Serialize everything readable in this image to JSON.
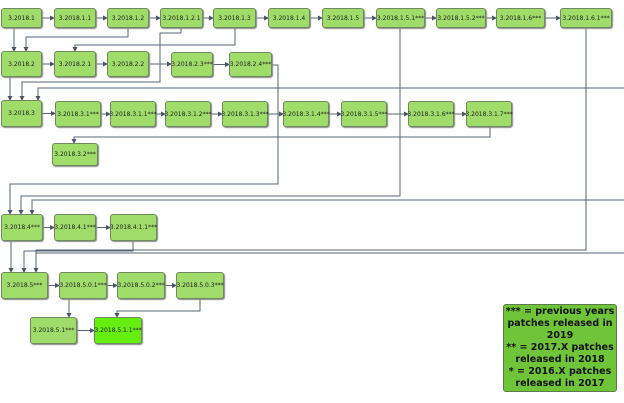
{
  "nodes": [
    "3.2018.1",
    "3.2018.1.1",
    "3.2018.1.2",
    "3.2018.1.2.1",
    "3.2018.1.3",
    "3.2018.1.4",
    "3.2018.1.5",
    "3.2018.1.5.1***",
    "3.2018.1.5.2***",
    "3.2018.1.6***",
    "3.2018.1.6.1***",
    "3.2018.2",
    "3.2018.2.1",
    "3.2018.2.2",
    "3.2018.2.3***",
    "3.2018.2.4***",
    "3.2018.3",
    "3.2018.3.1***",
    "3.2018.3.1.1***",
    "3.2018.3.1.2***",
    "3.2018.3.1.3***",
    "3.2018.3.1.4***",
    "3.2018.3.1.5***",
    "3.2018.3.1.6***",
    "3.2018.3.1.7***",
    "3.2018.3.2***",
    "3.2018.4***",
    "3.2018.4.1***",
    "3.2018.4.1.1***",
    "3.2018.5***",
    "3.2018.5.0.1***",
    "3.2018.5.0.2***",
    "3.2018.5.0.3***",
    "3.2018.5.1***",
    "3.2018.5.1.1***"
  ],
  "highlighted_node": "3.2018.5.1.1***",
  "legend": {
    "lines": [
      "*** = previous years",
      "patches released in 2019",
      "** = 2017.X patches",
      "released in 2018",
      "* = 2016.X patches",
      "released in 2017"
    ]
  },
  "colors": {
    "node": "#9fdc6a",
    "highlight": "#66ee10",
    "legend": "#6fc43a",
    "connector": "#5a6478"
  }
}
